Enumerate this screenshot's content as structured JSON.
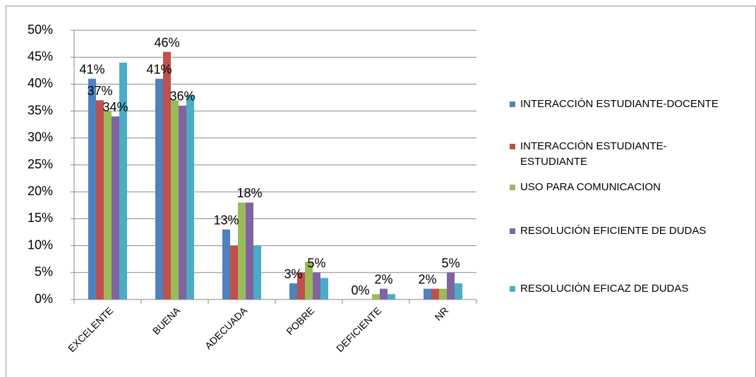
{
  "chart_data": {
    "type": "bar",
    "categories": [
      "EXCELENTE",
      "BUENA",
      "ADECUADA",
      "POBRE",
      "DEFICIENTE",
      "NR"
    ],
    "series": [
      {
        "name": "INTERACCIÓN ESTUDIANTE-DOCENTE",
        "color": "#4f81bd",
        "values": [
          41,
          41,
          13,
          3,
          0,
          2
        ],
        "value_labels": [
          "41%",
          "41%",
          "13%",
          "3%",
          "0%",
          "2%"
        ]
      },
      {
        "name": "INTERACCIÓN ESTUDIANTE-ESTUDIANTE",
        "color": "#c0504d",
        "values": [
          37,
          46,
          10,
          5,
          0,
          2
        ],
        "value_labels": [
          "37%",
          "46%",
          null,
          null,
          null,
          null
        ]
      },
      {
        "name": "USO PARA COMUNICACION",
        "color": "#9bbb59",
        "values": [
          35,
          37,
          18,
          7,
          1,
          2
        ]
      },
      {
        "name": "RESOLUCIÓN EFICIENTE DE DUDAS",
        "color": "#8064a2",
        "values": [
          34,
          36,
          18,
          5,
          2,
          5
        ],
        "value_labels": [
          "34%",
          "36%",
          "18%",
          "5%",
          "2%",
          "5%"
        ]
      },
      {
        "name": "RESOLUCIÓN EFICAZ DE DUDAS",
        "color": "#4bacc6",
        "values": [
          44,
          38,
          10,
          4,
          1,
          3
        ]
      }
    ],
    "ylim": [
      0,
      50
    ],
    "yticks": [
      {
        "value": 0,
        "label": "0%"
      },
      {
        "value": 5,
        "label": "5%"
      },
      {
        "value": 10,
        "label": "10%"
      },
      {
        "value": 15,
        "label": "15%"
      },
      {
        "value": 20,
        "label": "20%"
      },
      {
        "value": 25,
        "label": "25%"
      },
      {
        "value": 30,
        "label": "30%"
      },
      {
        "value": 35,
        "label": "35%"
      },
      {
        "value": 40,
        "label": "40%"
      },
      {
        "value": 45,
        "label": "45%"
      },
      {
        "value": 50,
        "label": "50%"
      }
    ],
    "grid": true,
    "legend": "right"
  }
}
